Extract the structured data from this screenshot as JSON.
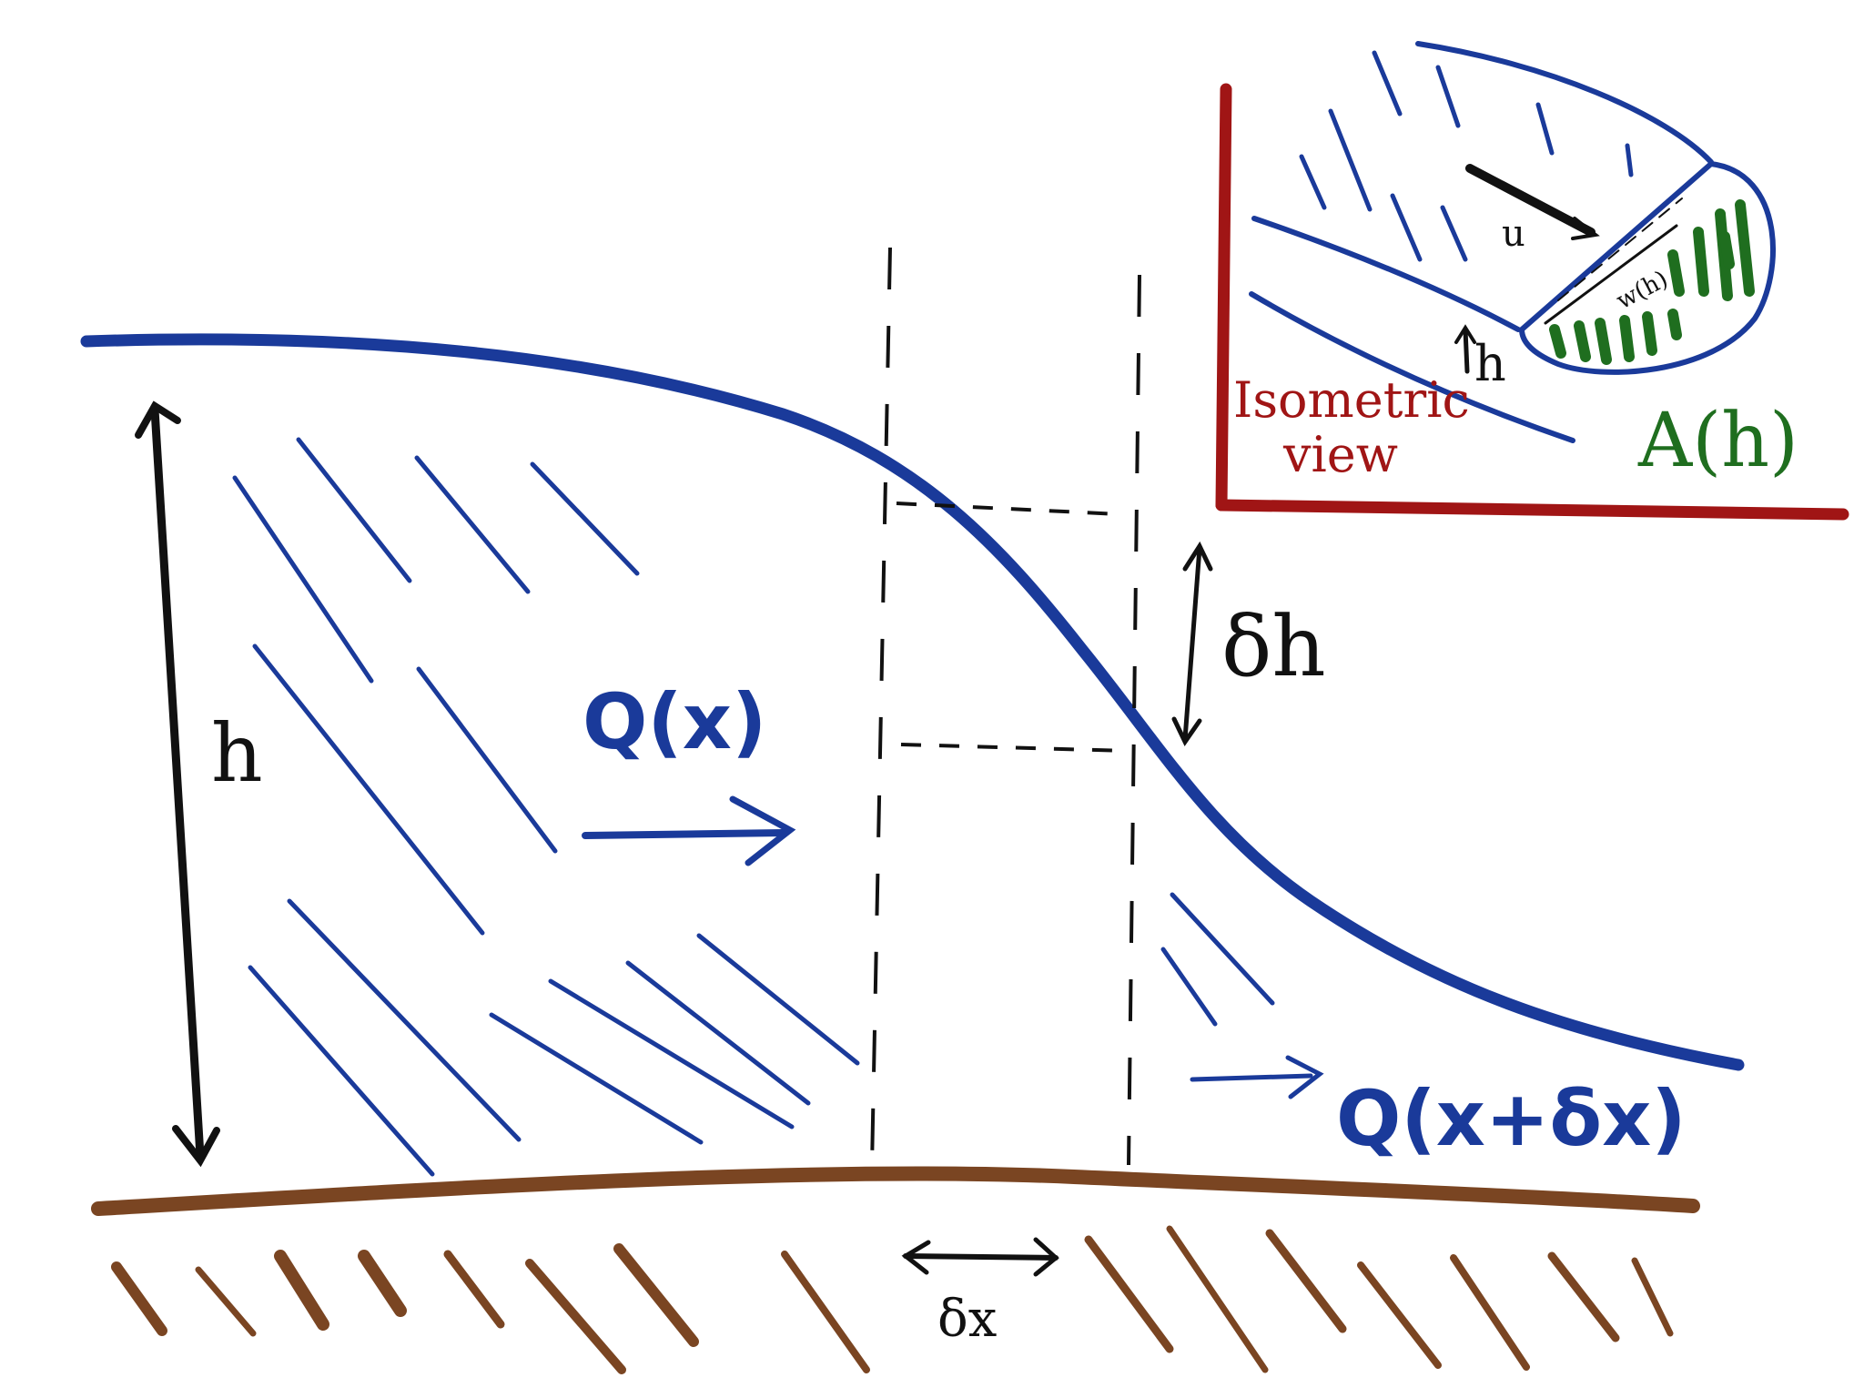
{
  "labels": {
    "h_main": "h",
    "delta_h": "δh",
    "q_x": "Q(x)",
    "q_x_dx": "Q(x+δx)",
    "delta_x": "δx",
    "iso_h": "h",
    "iso_u": "u",
    "iso_w": "w(h)",
    "a_h": "A(h)",
    "isometric_line1": "Isometric",
    "isometric_line2": "view"
  },
  "colors": {
    "water": "#1a3a9a",
    "ground": "#7a4522",
    "ink": "#111111",
    "inset_axes": "#a01515",
    "area": "#1f6e1f"
  }
}
